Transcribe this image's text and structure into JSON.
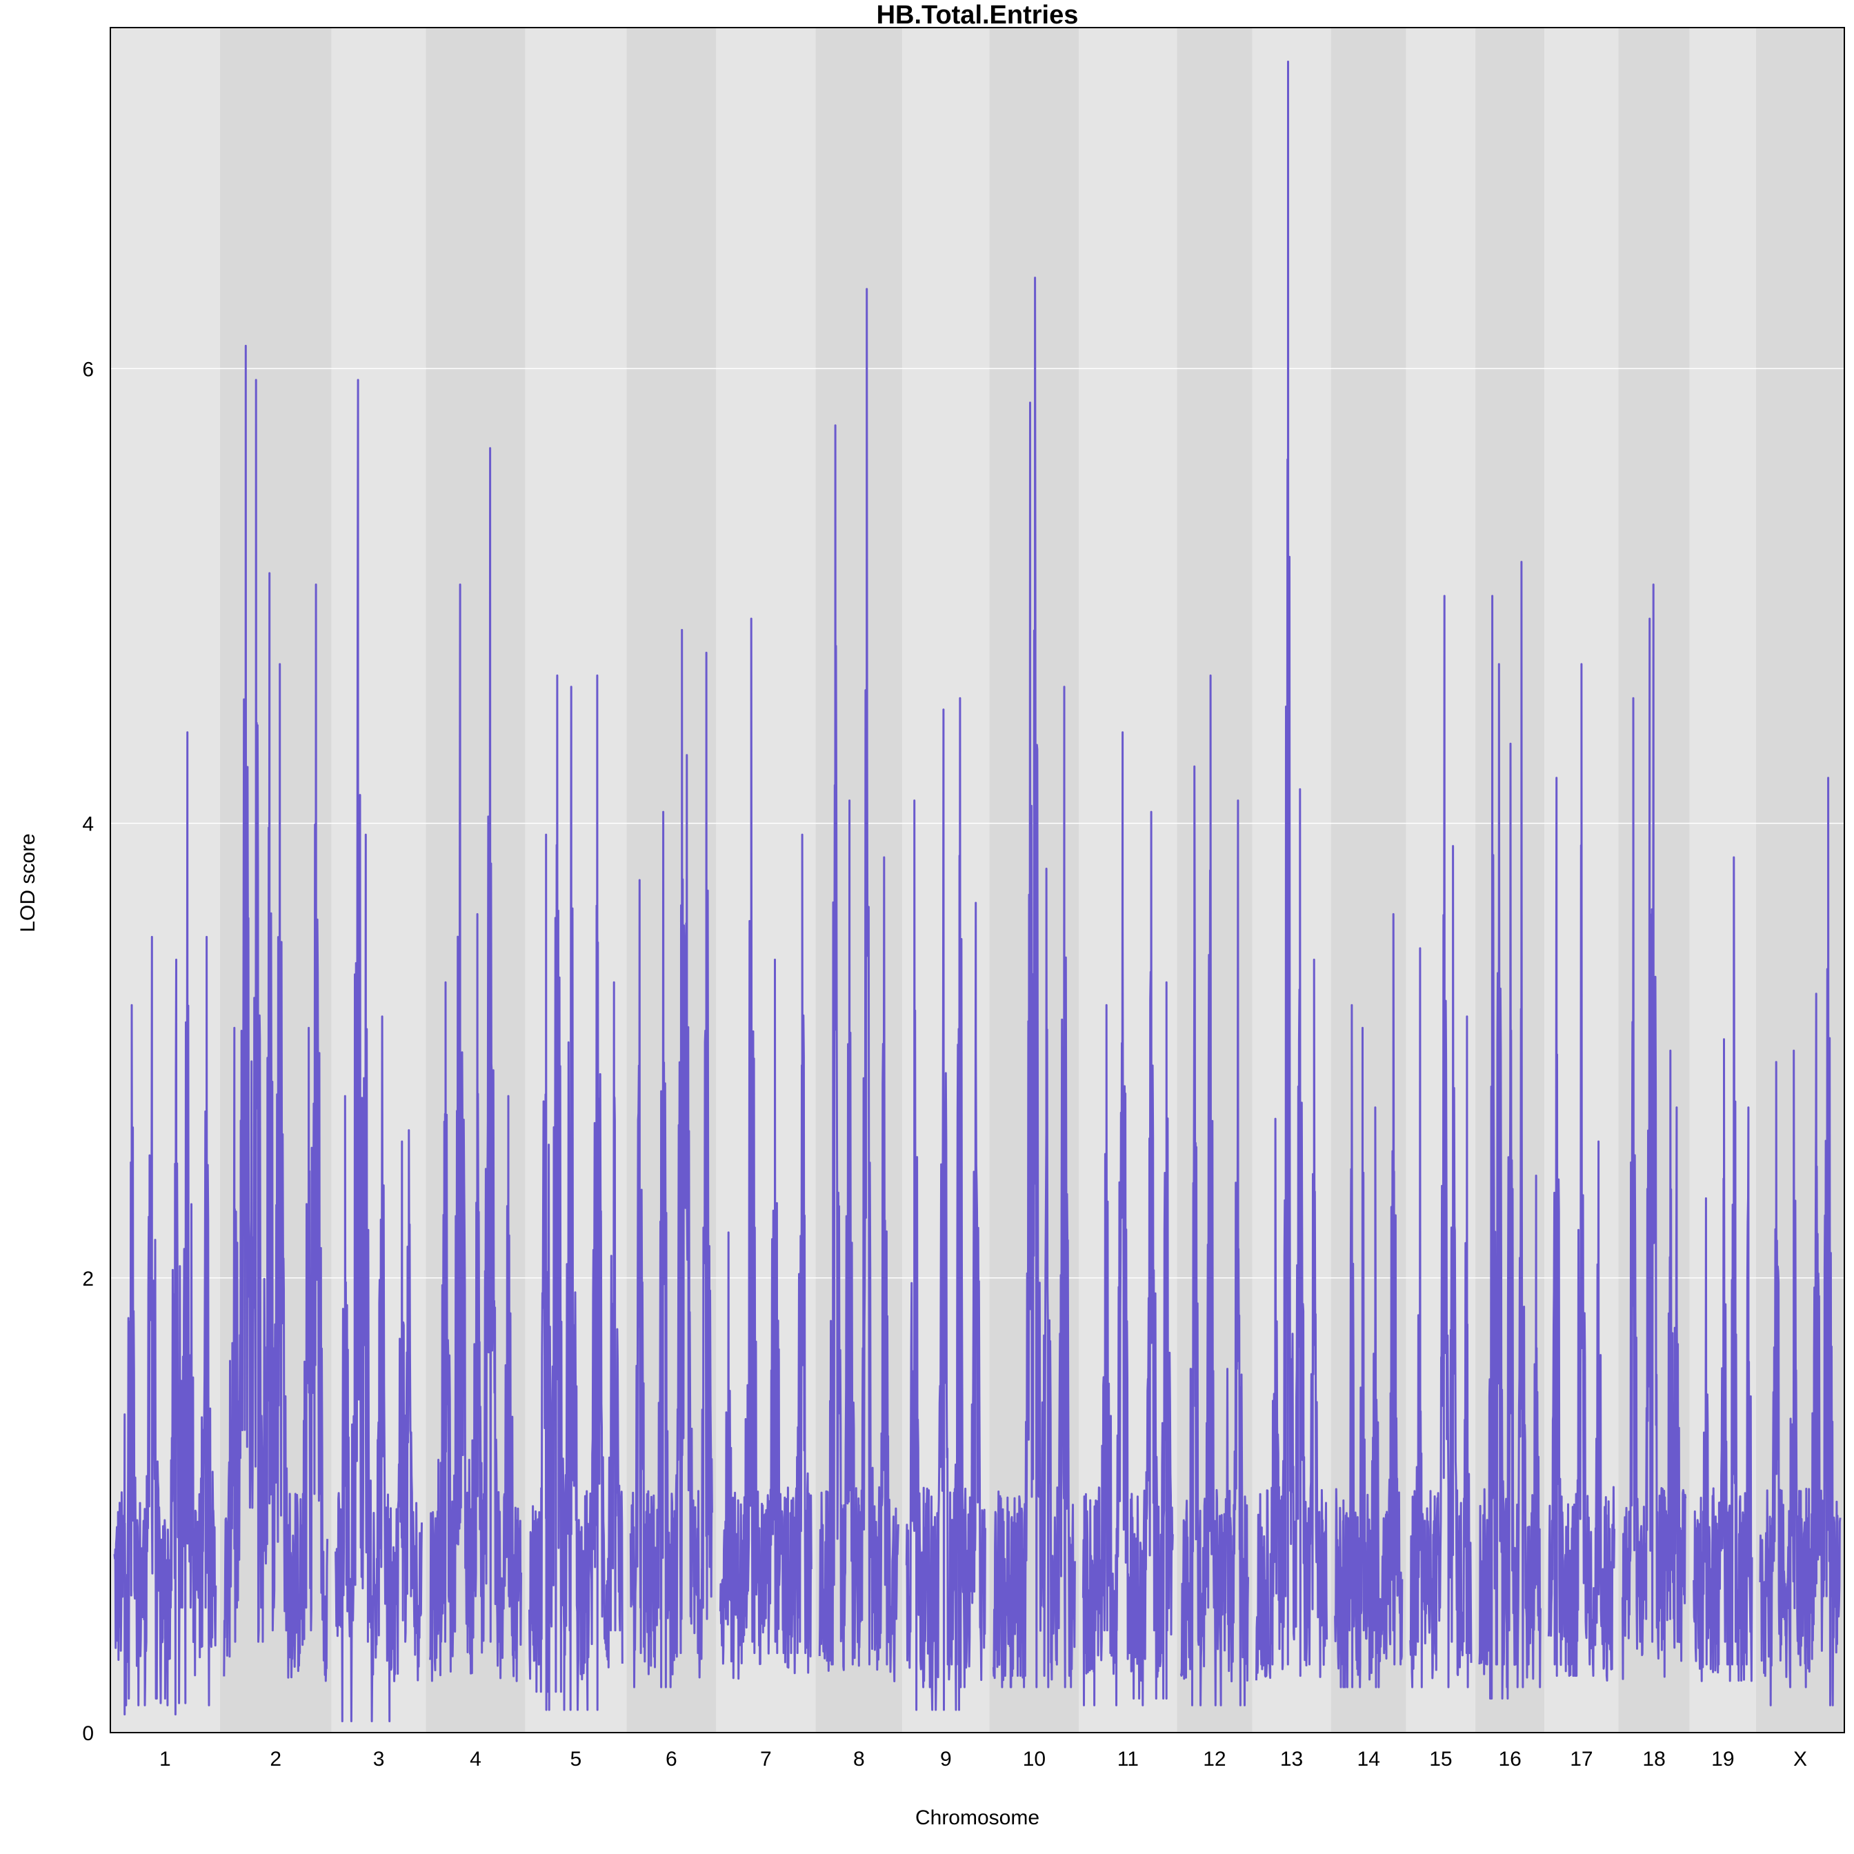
{
  "chart_data": {
    "type": "line",
    "title": "HB.Total.Entries",
    "xlabel": "Chromosome",
    "ylabel": "LOD score",
    "ylim": [
      0,
      7.5
    ],
    "yticks": [
      0,
      2,
      4,
      6
    ],
    "grid": true,
    "background_colors": [
      "#e5e5e5",
      "#d9d9d9"
    ],
    "series": [
      {
        "color": "#6a5acd"
      }
    ],
    "chromosomes": [
      {
        "label": "1",
        "peaks": [
          [
            0.1,
            1.4
          ],
          [
            0.17,
            3.2
          ],
          [
            0.37,
            3.5
          ],
          [
            0.61,
            3.4
          ],
          [
            0.72,
            4.4
          ],
          [
            0.91,
            3.5
          ]
        ],
        "troughs": [
          0.08,
          0.12,
          0.15,
          0.13,
          0.55
        ]
      },
      {
        "label": "2",
        "peaks": [
          [
            0.1,
            3.1
          ],
          [
            0.21,
            6.1
          ],
          [
            0.31,
            5.95
          ],
          [
            0.44,
            5.1
          ],
          [
            0.54,
            4.7
          ],
          [
            0.82,
            3.1
          ],
          [
            0.89,
            5.05
          ]
        ],
        "troughs": [
          0.55,
          0.4,
          0.45,
          1.05
        ]
      },
      {
        "label": "3",
        "peaks": [
          [
            0.11,
            2.8
          ],
          [
            0.26,
            5.95
          ],
          [
            0.35,
            3.95
          ],
          [
            0.54,
            3.15
          ],
          [
            0.77,
            2.6
          ],
          [
            0.85,
            2.65
          ]
        ],
        "troughs": [
          0.65,
          0.4,
          0.05,
          0.6
        ]
      },
      {
        "label": "4",
        "peaks": [
          [
            0.17,
            3.3
          ],
          [
            0.33,
            5.05
          ],
          [
            0.52,
            3.6
          ],
          [
            0.66,
            5.65
          ],
          [
            0.86,
            2.8
          ]
        ],
        "troughs": [
          0.4,
          0.6,
          1.2
        ]
      },
      {
        "label": "5",
        "peaks": [
          [
            0.18,
            3.95
          ],
          [
            0.3,
            4.65
          ],
          [
            0.45,
            4.6
          ],
          [
            0.73,
            4.65
          ],
          [
            0.91,
            3.3
          ]
        ],
        "troughs": [
          0.18,
          0.1,
          0.1,
          0.45
        ]
      },
      {
        "label": "6",
        "peaks": [
          [
            0.11,
            3.75
          ],
          [
            0.4,
            4.05
          ],
          [
            0.63,
            4.85
          ],
          [
            0.69,
            4.3
          ],
          [
            0.93,
            4.75
          ]
        ],
        "troughs": [
          0.35,
          0.2,
          0.5,
          0.55
        ]
      },
      {
        "label": "7",
        "peaks": [
          [
            0.09,
            2.2
          ],
          [
            0.34,
            4.9
          ],
          [
            0.6,
            3.4
          ],
          [
            0.9,
            3.95
          ]
        ],
        "troughs": [
          0.55,
          0.35,
          0.35,
          0.4
        ]
      },
      {
        "label": "8",
        "peaks": [
          [
            0.2,
            5.75
          ],
          [
            0.38,
            4.1
          ],
          [
            0.6,
            6.35
          ],
          [
            0.82,
            3.85
          ]
        ],
        "troughs": [
          0.3,
          1.0,
          0.65
        ]
      },
      {
        "label": "9",
        "peaks": [
          [
            0.1,
            4.1
          ],
          [
            0.47,
            4.5
          ],
          [
            0.68,
            4.55
          ],
          [
            0.88,
            3.65
          ]
        ],
        "troughs": [
          0.1,
          0.2,
          0.3,
          0.9
        ]
      },
      {
        "label": "10",
        "peaks": [
          [
            0.45,
            5.85
          ],
          [
            0.51,
            6.4
          ],
          [
            0.65,
            3.8
          ],
          [
            0.87,
            4.6
          ]
        ],
        "troughs": [
          0.25,
          0.2,
          0.25,
          0.65
        ]
      },
      {
        "label": "11",
        "peaks": [
          [
            0.26,
            3.2
          ],
          [
            0.44,
            4.4
          ],
          [
            0.76,
            4.05
          ],
          [
            0.93,
            3.3
          ]
        ],
        "troughs": [
          0.12,
          0.45,
          0.15,
          0.35
        ]
      },
      {
        "label": "12",
        "peaks": [
          [
            0.2,
            4.25
          ],
          [
            0.44,
            4.65
          ],
          [
            0.85,
            4.1
          ]
        ],
        "troughs": [
          0.12,
          0.55,
          1.6
        ]
      },
      {
        "label": "13",
        "peaks": [
          [
            0.27,
            2.7
          ],
          [
            0.45,
            7.35
          ],
          [
            0.62,
            4.15
          ],
          [
            0.82,
            3.4
          ]
        ],
        "troughs": [
          0.25,
          0.3,
          0.25,
          0.6
        ]
      },
      {
        "label": "14",
        "peaks": [
          [
            0.25,
            3.2
          ],
          [
            0.41,
            3.1
          ],
          [
            0.6,
            2.75
          ],
          [
            0.87,
            3.6
          ]
        ],
        "troughs": [
          0.2,
          0.3,
          0.35,
          0.45
        ]
      },
      {
        "label": "15",
        "peaks": [
          [
            0.16,
            3.45
          ],
          [
            0.56,
            5.0
          ],
          [
            0.7,
            3.9
          ],
          [
            0.93,
            3.15
          ]
        ],
        "troughs": [
          0.4,
          0.35,
          0.2,
          0.55
        ]
      },
      {
        "label": "16",
        "peaks": [
          [
            0.21,
            5.0
          ],
          [
            0.32,
            4.7
          ],
          [
            0.51,
            4.35
          ],
          [
            0.69,
            5.15
          ],
          [
            0.93,
            2.45
          ]
        ],
        "troughs": [
          0.3,
          0.15,
          0.2,
          0.45
        ]
      },
      {
        "label": "17",
        "peaks": [
          [
            0.12,
            4.2
          ],
          [
            0.5,
            4.7
          ],
          [
            0.76,
            2.6
          ]
        ],
        "troughs": [
          0.25,
          0.25,
          0.3,
          0.4
        ]
      },
      {
        "label": "18",
        "peaks": [
          [
            0.17,
            4.55
          ],
          [
            0.43,
            4.9
          ],
          [
            0.49,
            5.05
          ],
          [
            0.76,
            3.0
          ],
          [
            0.86,
            2.75
          ]
        ],
        "troughs": [
          0.8,
          0.5,
          0.6,
          0.4
        ]
      },
      {
        "label": "19",
        "peaks": [
          [
            0.21,
            2.35
          ],
          [
            0.52,
            3.05
          ],
          [
            0.69,
            3.85
          ],
          [
            0.94,
            2.75
          ]
        ],
        "troughs": [
          0.5,
          0.3,
          0.3,
          0.4
        ]
      },
      {
        "label": "X",
        "peaks": [
          [
            0.2,
            2.95
          ],
          [
            0.42,
            3.0
          ],
          [
            0.7,
            3.25
          ],
          [
            0.85,
            4.2
          ]
        ],
        "troughs": [
          0.6,
          0.2,
          0.75,
          0.12
        ]
      }
    ]
  }
}
